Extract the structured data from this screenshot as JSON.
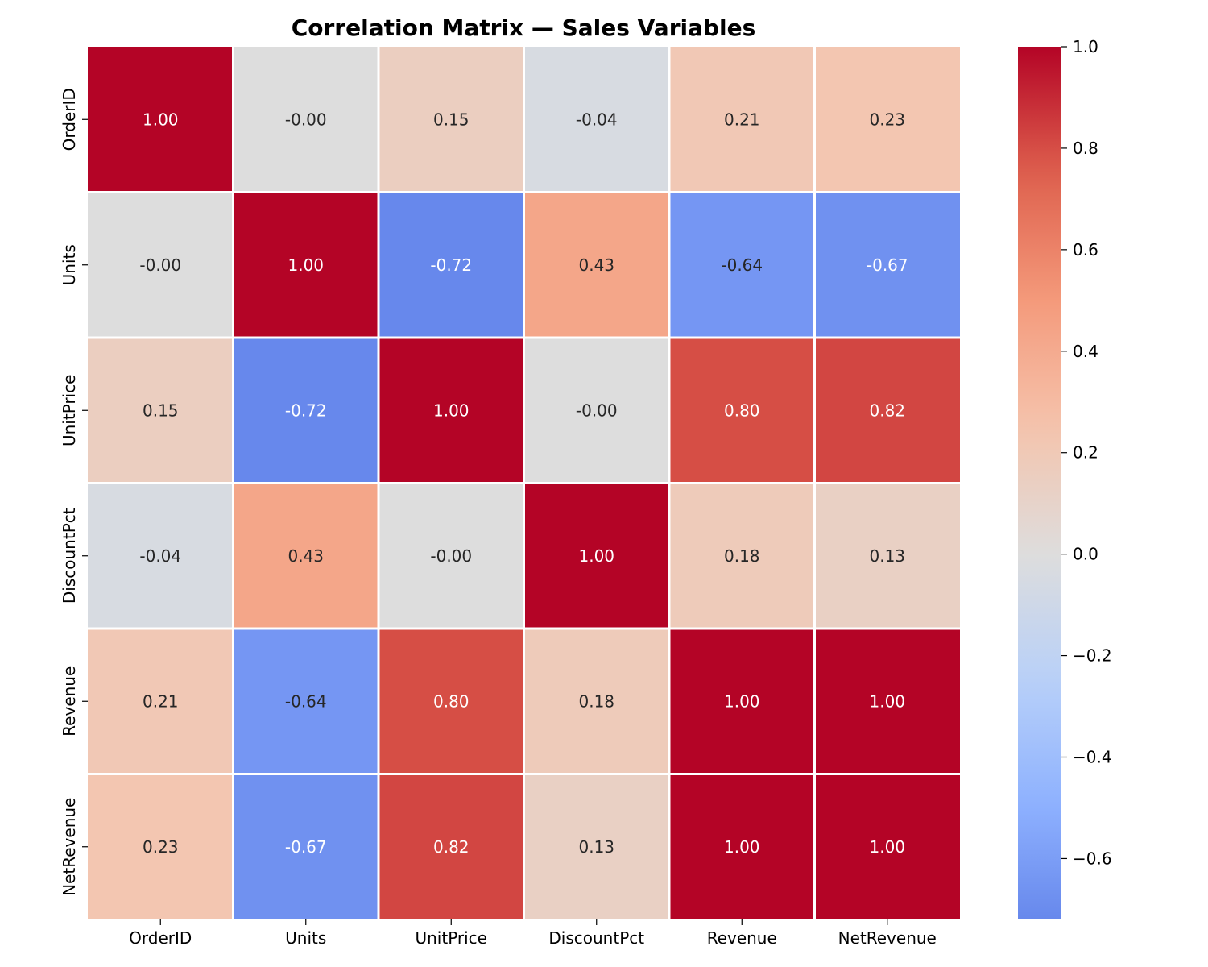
{
  "chart_data": {
    "type": "heatmap",
    "title": "Correlation Matrix — Sales Variables",
    "x_labels": [
      "OrderID",
      "Units",
      "UnitPrice",
      "DiscountPct",
      "Revenue",
      "NetRevenue"
    ],
    "y_labels": [
      "OrderID",
      "Units",
      "UnitPrice",
      "DiscountPct",
      "Revenue",
      "NetRevenue"
    ],
    "values": [
      [
        1.0,
        -0.0,
        0.15,
        -0.04,
        0.21,
        0.23
      ],
      [
        -0.0,
        1.0,
        -0.72,
        0.43,
        -0.64,
        -0.67
      ],
      [
        0.15,
        -0.72,
        1.0,
        -0.0,
        0.8,
        0.82
      ],
      [
        -0.04,
        0.43,
        -0.0,
        1.0,
        0.18,
        0.13
      ],
      [
        0.21,
        -0.64,
        0.8,
        0.18,
        1.0,
        1.0
      ],
      [
        0.23,
        -0.67,
        0.82,
        0.13,
        1.0,
        1.0
      ]
    ],
    "value_labels": [
      [
        "1.00",
        "-0.00",
        "0.15",
        "-0.04",
        "0.21",
        "0.23"
      ],
      [
        "-0.00",
        "1.00",
        "-0.72",
        "0.43",
        "-0.64",
        "-0.67"
      ],
      [
        "0.15",
        "-0.72",
        "1.00",
        "-0.00",
        "0.80",
        "0.82"
      ],
      [
        "-0.04",
        "0.43",
        "-0.00",
        "1.00",
        "0.18",
        "0.13"
      ],
      [
        "0.21",
        "-0.64",
        "0.80",
        "0.18",
        "1.00",
        "1.00"
      ],
      [
        "0.23",
        "-0.67",
        "0.82",
        "0.13",
        "1.00",
        "1.00"
      ]
    ],
    "colormap": "coolwarm",
    "color_range": [
      -0.72,
      1.0
    ],
    "colorbar": {
      "ticks": [
        1.0,
        0.8,
        0.6,
        0.4,
        0.2,
        0.0,
        -0.2,
        -0.4,
        -0.6
      ],
      "tick_labels": [
        "1.0",
        "0.8",
        "0.6",
        "0.4",
        "0.2",
        "0.0",
        "−0.2",
        "−0.4",
        "−0.6"
      ]
    },
    "grid": false,
    "legend": "colorbar-right"
  }
}
